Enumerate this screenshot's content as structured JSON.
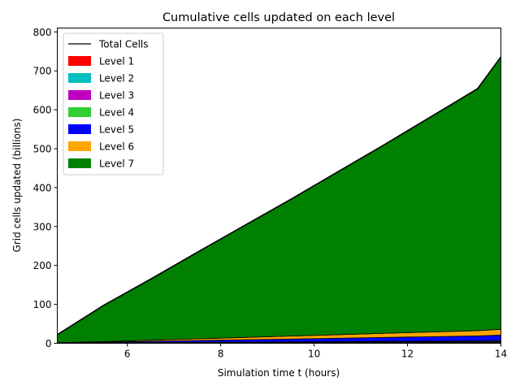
{
  "chart_data": {
    "type": "area",
    "title": "Cumulative cells updated on each level",
    "xlabel": "Simulation time t (hours)",
    "ylabel": "Grid cells updated (billions)",
    "xlim": [
      4.5,
      14
    ],
    "ylim": [
      0,
      810
    ],
    "xticks": [
      6,
      8,
      10,
      12,
      14
    ],
    "yticks": [
      0,
      100,
      200,
      300,
      400,
      500,
      600,
      700,
      800
    ],
    "grid": false,
    "stacked": true,
    "legend_position": "top-left",
    "x": [
      4.5,
      5.5,
      6.5,
      7.5,
      8.5,
      9.5,
      10.5,
      11.5,
      12.5,
      13.5,
      14
    ],
    "total": {
      "name": "Total Cells",
      "color": "#000000",
      "values": [
        22,
        98,
        165,
        234,
        302,
        370,
        440,
        510,
        582,
        654,
        736
      ]
    },
    "series": [
      {
        "name": "Level 1",
        "color": "#ff0000",
        "values": [
          0.1,
          0.2,
          0.3,
          0.4,
          0.5,
          0.6,
          0.7,
          0.8,
          0.9,
          1.0,
          1.1
        ]
      },
      {
        "name": "Level 2",
        "color": "#00bfbf",
        "values": [
          0.1,
          0.2,
          0.3,
          0.4,
          0.5,
          0.6,
          0.7,
          0.8,
          0.9,
          1.0,
          1.1
        ]
      },
      {
        "name": "Level 3",
        "color": "#bf00bf",
        "values": [
          0.2,
          0.4,
          0.6,
          0.8,
          1.0,
          1.2,
          1.4,
          1.6,
          1.8,
          2.0,
          2.2
        ]
      },
      {
        "name": "Level 4",
        "color": "#32cd32",
        "values": [
          0.2,
          0.4,
          0.6,
          0.8,
          1.0,
          1.2,
          1.4,
          1.6,
          1.8,
          2.0,
          2.2
        ]
      },
      {
        "name": "Level 5",
        "color": "#0000ff",
        "values": [
          0.4,
          1.8,
          3.2,
          4.6,
          6.0,
          7.4,
          8.8,
          10.2,
          11.6,
          13.0,
          14.4
        ]
      },
      {
        "name": "Level 6",
        "color": "#ffa500",
        "values": [
          0.5,
          1.5,
          3.0,
          4.5,
          6.0,
          7.5,
          9.0,
          10.5,
          12.0,
          13.5,
          15.0
        ]
      },
      {
        "name": "Level 7",
        "color": "#008000",
        "values": [
          20.5,
          93.5,
          156.0,
          221.5,
          287.0,
          351.5,
          418.0,
          484.5,
          553.0,
          622.5,
          700.0
        ]
      }
    ]
  }
}
